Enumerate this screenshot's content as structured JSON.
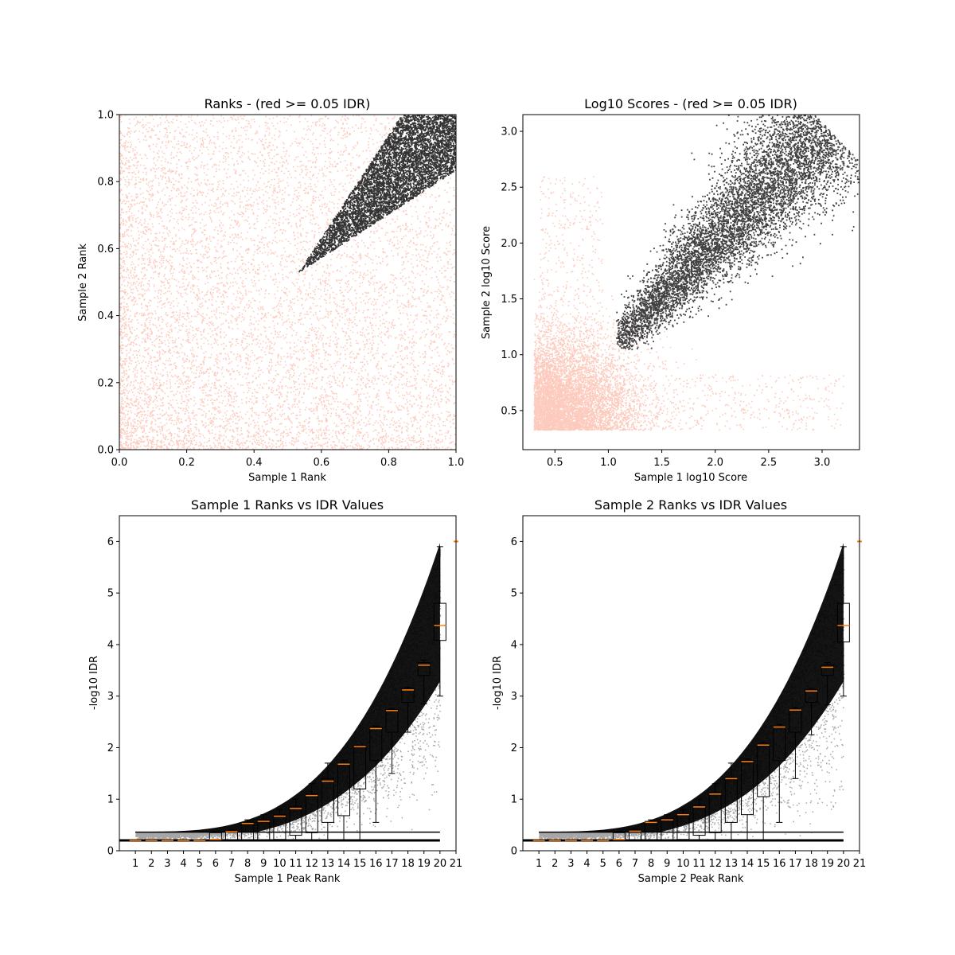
{
  "chart_data": [
    {
      "type": "scatter",
      "title": "Ranks - (red >= 0.05 IDR)",
      "xlabel": "Sample 1 Rank",
      "ylabel": "Sample 2 Rank",
      "xlim": [
        0.0,
        1.0
      ],
      "ylim": [
        0.0,
        1.0
      ],
      "xticks": [
        0.0,
        0.2,
        0.4,
        0.6,
        0.8,
        1.0
      ],
      "yticks": [
        0.0,
        0.2,
        0.4,
        0.6,
        0.8,
        1.0
      ],
      "tick_format": "1",
      "grid": false,
      "series": [
        {
          "color": "#FA8C6E",
          "description_points": "dense low-IDR cloud filling lower-left, spreading over full range",
          "points": [
            [
              0.05,
              0.1
            ],
            [
              0.1,
              0.3
            ],
            [
              0.2,
              0.5
            ],
            [
              0.3,
              0.2
            ],
            [
              0.4,
              0.6
            ],
            [
              0.5,
              0.45
            ],
            [
              0.15,
              0.75
            ],
            [
              0.7,
              0.3
            ],
            [
              0.85,
              0.15
            ],
            [
              0.6,
              0.6
            ],
            [
              0.3,
              0.9
            ],
            [
              0.9,
              0.6
            ]
          ]
        },
        {
          "color": "#000000",
          "points": [
            [
              0.55,
              0.56
            ],
            [
              0.6,
              0.7
            ],
            [
              0.7,
              0.72
            ],
            [
              0.75,
              0.85
            ],
            [
              0.8,
              0.8
            ],
            [
              0.85,
              0.9
            ],
            [
              0.9,
              0.88
            ],
            [
              0.95,
              0.96
            ],
            [
              1.0,
              1.0
            ],
            [
              0.65,
              0.75
            ],
            [
              0.72,
              0.62
            ],
            [
              0.88,
              0.78
            ]
          ]
        }
      ]
    },
    {
      "type": "scatter",
      "title": "Log10 Scores - (red >= 0.05 IDR)",
      "xlabel": "Sample 1 log10 Score",
      "ylabel": "Sample 2 log10 Score",
      "xlim": [
        0.2,
        3.35
      ],
      "ylim": [
        0.15,
        3.15
      ],
      "xticks": [
        0.5,
        1.0,
        1.5,
        2.0,
        2.5,
        3.0
      ],
      "yticks": [
        0.5,
        1.0,
        1.5,
        2.0,
        2.5,
        3.0
      ],
      "tick_format": "1",
      "grid": false,
      "series": [
        {
          "color": "#FA8C6E",
          "points": [
            [
              0.3,
              0.35
            ],
            [
              0.5,
              0.6
            ],
            [
              0.7,
              0.9
            ],
            [
              0.9,
              0.5
            ],
            [
              1.0,
              1.2
            ],
            [
              1.3,
              0.7
            ],
            [
              0.4,
              2.0
            ],
            [
              1.8,
              0.5
            ],
            [
              2.2,
              1.3
            ],
            [
              3.1,
              0.5
            ]
          ]
        },
        {
          "color": "#000000",
          "points": [
            [
              1.1,
              1.1
            ],
            [
              1.3,
              1.4
            ],
            [
              1.6,
              1.7
            ],
            [
              1.9,
              1.9
            ],
            [
              2.2,
              2.2
            ],
            [
              2.5,
              2.4
            ],
            [
              2.8,
              2.7
            ],
            [
              3.0,
              2.9
            ],
            [
              3.2,
              3.05
            ]
          ]
        }
      ]
    },
    {
      "type": "box",
      "title": "Sample 1 Ranks vs IDR Values",
      "xlabel": "Sample 1 Peak Rank",
      "ylabel": "-log10 IDR",
      "xlim": [
        0,
        21
      ],
      "ylim": [
        0,
        6.5
      ],
      "categories": [
        "1",
        "2",
        "3",
        "4",
        "5",
        "6",
        "7",
        "8",
        "9",
        "10",
        "11",
        "12",
        "13",
        "14",
        "15",
        "16",
        "17",
        "18",
        "19",
        "20",
        "21"
      ],
      "yticks": [
        0,
        1,
        2,
        3,
        4,
        5,
        6
      ],
      "tick_format": "0",
      "grid": false,
      "boxes": [
        {
          "x": 1,
          "whislo": 0.2,
          "q1": 0.2,
          "med": 0.2,
          "q3": 0.2,
          "whishi": 0.2
        },
        {
          "x": 2,
          "whislo": 0.2,
          "q1": 0.2,
          "med": 0.2,
          "q3": 0.2,
          "whishi": 0.2
        },
        {
          "x": 3,
          "whislo": 0.2,
          "q1": 0.2,
          "med": 0.2,
          "q3": 0.2,
          "whishi": 0.2
        },
        {
          "x": 4,
          "whislo": 0.2,
          "q1": 0.2,
          "med": 0.2,
          "q3": 0.2,
          "whishi": 0.2
        },
        {
          "x": 5,
          "whislo": 0.2,
          "q1": 0.2,
          "med": 0.2,
          "q3": 0.2,
          "whishi": 0.2
        },
        {
          "x": 6,
          "whislo": 0.2,
          "q1": 0.2,
          "med": 0.22,
          "q3": 0.35,
          "whishi": 0.38
        },
        {
          "x": 7,
          "whislo": 0.2,
          "q1": 0.2,
          "med": 0.37,
          "q3": 0.38,
          "whishi": 0.4
        },
        {
          "x": 8,
          "whislo": 0.2,
          "q1": 0.2,
          "med": 0.53,
          "q3": 0.55,
          "whishi": 0.6
        },
        {
          "x": 9,
          "whislo": 0.2,
          "q1": 0.2,
          "med": 0.57,
          "q3": 0.6,
          "whishi": 0.7
        },
        {
          "x": 10,
          "whislo": 0.2,
          "q1": 0.22,
          "med": 0.67,
          "q3": 0.7,
          "whishi": 0.8
        },
        {
          "x": 11,
          "whislo": 0.2,
          "q1": 0.3,
          "med": 0.82,
          "q3": 0.86,
          "whishi": 1.0
        },
        {
          "x": 12,
          "whislo": 0.2,
          "q1": 0.35,
          "med": 1.07,
          "q3": 1.1,
          "whishi": 1.3
        },
        {
          "x": 13,
          "whislo": 0.2,
          "q1": 0.55,
          "med": 1.35,
          "q3": 1.4,
          "whishi": 1.7
        },
        {
          "x": 14,
          "whislo": 0.2,
          "q1": 0.68,
          "med": 1.68,
          "q3": 1.7,
          "whishi": 1.75
        },
        {
          "x": 15,
          "whislo": 0.2,
          "q1": 1.2,
          "med": 2.02,
          "q3": 2.04,
          "whishi": 2.05
        },
        {
          "x": 16,
          "whislo": 0.55,
          "q1": 1.75,
          "med": 2.37,
          "q3": 2.4,
          "whishi": 2.42
        },
        {
          "x": 17,
          "whislo": 1.5,
          "q1": 2.3,
          "med": 2.72,
          "q3": 2.74,
          "whishi": 2.76
        },
        {
          "x": 18,
          "whislo": 2.3,
          "q1": 2.88,
          "med": 3.12,
          "q3": 3.15,
          "whishi": 3.17
        },
        {
          "x": 19,
          "whislo": 2.85,
          "q1": 3.4,
          "med": 3.6,
          "q3": 3.65,
          "whishi": 3.7
        },
        {
          "x": 20,
          "whislo": 3.0,
          "q1": 4.08,
          "med": 4.37,
          "q3": 4.8,
          "whishi": 5.9
        },
        {
          "x": 21,
          "med": 6.0,
          "outlier_only": true
        }
      ]
    },
    {
      "type": "box",
      "title": "Sample 2 Ranks vs IDR Values",
      "xlabel": "Sample 2 Peak Rank",
      "ylabel": "-log10 IDR",
      "xlim": [
        0,
        21
      ],
      "ylim": [
        0,
        6.5
      ],
      "categories": [
        "1",
        "2",
        "3",
        "4",
        "5",
        "6",
        "7",
        "8",
        "9",
        "10",
        "11",
        "12",
        "13",
        "14",
        "15",
        "16",
        "17",
        "18",
        "19",
        "20",
        "21"
      ],
      "yticks": [
        0,
        1,
        2,
        3,
        4,
        5,
        6
      ],
      "tick_format": "0",
      "grid": false,
      "boxes": [
        {
          "x": 1,
          "whislo": 0.2,
          "q1": 0.2,
          "med": 0.2,
          "q3": 0.2,
          "whishi": 0.2
        },
        {
          "x": 2,
          "whislo": 0.2,
          "q1": 0.2,
          "med": 0.2,
          "q3": 0.2,
          "whishi": 0.2
        },
        {
          "x": 3,
          "whislo": 0.2,
          "q1": 0.2,
          "med": 0.2,
          "q3": 0.2,
          "whishi": 0.2
        },
        {
          "x": 4,
          "whislo": 0.2,
          "q1": 0.2,
          "med": 0.2,
          "q3": 0.2,
          "whishi": 0.2
        },
        {
          "x": 5,
          "whislo": 0.2,
          "q1": 0.2,
          "med": 0.2,
          "q3": 0.2,
          "whishi": 0.2
        },
        {
          "x": 6,
          "whislo": 0.2,
          "q1": 0.2,
          "med": 0.22,
          "q3": 0.35,
          "whishi": 0.38
        },
        {
          "x": 7,
          "whislo": 0.2,
          "q1": 0.2,
          "med": 0.38,
          "q3": 0.4,
          "whishi": 0.42
        },
        {
          "x": 8,
          "whislo": 0.2,
          "q1": 0.2,
          "med": 0.55,
          "q3": 0.57,
          "whishi": 0.6
        },
        {
          "x": 9,
          "whislo": 0.2,
          "q1": 0.2,
          "med": 0.6,
          "q3": 0.62,
          "whishi": 0.7
        },
        {
          "x": 10,
          "whislo": 0.2,
          "q1": 0.22,
          "med": 0.7,
          "q3": 0.72,
          "whishi": 0.8
        },
        {
          "x": 11,
          "whislo": 0.2,
          "q1": 0.3,
          "med": 0.85,
          "q3": 0.88,
          "whishi": 1.0
        },
        {
          "x": 12,
          "whislo": 0.2,
          "q1": 0.35,
          "med": 1.1,
          "q3": 1.12,
          "whishi": 1.3
        },
        {
          "x": 13,
          "whislo": 0.2,
          "q1": 0.55,
          "med": 1.4,
          "q3": 1.42,
          "whishi": 1.7
        },
        {
          "x": 14,
          "whislo": 0.2,
          "q1": 0.7,
          "med": 1.73,
          "q3": 1.75,
          "whishi": 1.78
        },
        {
          "x": 15,
          "whislo": 0.2,
          "q1": 1.05,
          "med": 2.05,
          "q3": 2.07,
          "whishi": 2.1
        },
        {
          "x": 16,
          "whislo": 0.55,
          "q1": 1.75,
          "med": 2.4,
          "q3": 2.42,
          "whishi": 2.45
        },
        {
          "x": 17,
          "whislo": 1.4,
          "q1": 2.3,
          "med": 2.73,
          "q3": 2.75,
          "whishi": 2.78
        },
        {
          "x": 18,
          "whislo": 2.25,
          "q1": 2.88,
          "med": 3.1,
          "q3": 3.12,
          "whishi": 3.15
        },
        {
          "x": 19,
          "whislo": 2.83,
          "q1": 3.4,
          "med": 3.56,
          "q3": 3.6,
          "whishi": 3.65
        },
        {
          "x": 20,
          "whislo": 3.0,
          "q1": 4.05,
          "med": 4.37,
          "q3": 4.8,
          "whishi": 5.9
        },
        {
          "x": 21,
          "med": 6.0,
          "outlier_only": true
        }
      ]
    }
  ]
}
